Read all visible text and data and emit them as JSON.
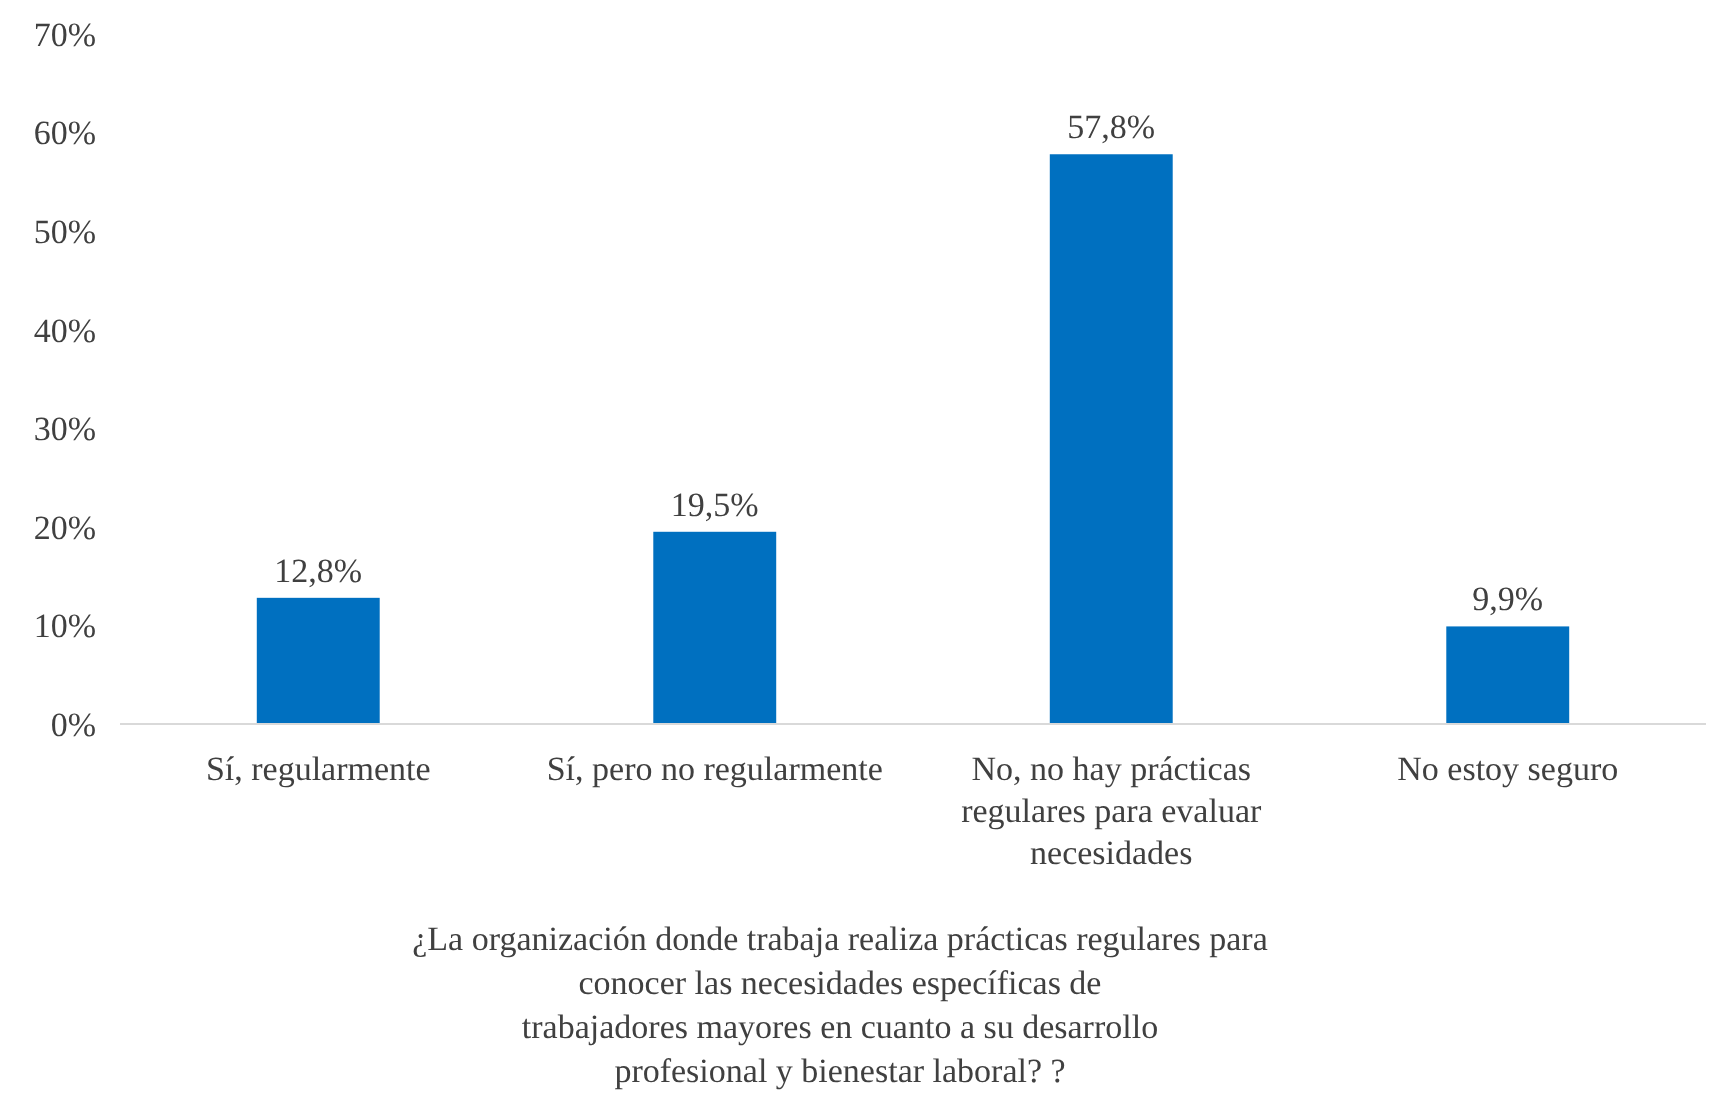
{
  "chart_data": {
    "type": "bar",
    "xlabel": "¿La organización donde trabaja realiza prácticas regulares para\nconocer las necesidades específicas de\ntrabajadores mayores en cuanto a su desarrollo\nprofesional y bienestar laboral? ?",
    "categories": [
      "Sí, regularmente",
      "Sí, pero no regularmente",
      "No, no hay prácticas\nregulares para evaluar\nnecesidades",
      "No estoy seguro"
    ],
    "values": [
      12.8,
      19.5,
      57.8,
      9.9
    ],
    "value_labels": [
      "12,8%",
      "19,5%",
      "57,8%",
      "9,9%"
    ],
    "color": "#0070c0",
    "ylim": [
      0,
      70
    ],
    "yticks": [
      {
        "value": 0,
        "label": "0%"
      },
      {
        "value": 10,
        "label": "10%"
      },
      {
        "value": 20,
        "label": "20%"
      },
      {
        "value": 30,
        "label": "30%"
      },
      {
        "value": 40,
        "label": "40%"
      },
      {
        "value": 50,
        "label": "50%"
      },
      {
        "value": 60,
        "label": "60%"
      },
      {
        "value": 70,
        "label": "70%"
      }
    ],
    "grid": false
  }
}
